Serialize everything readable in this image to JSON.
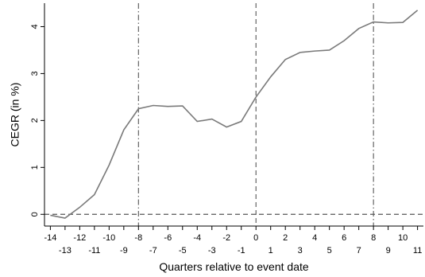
{
  "chart_data": {
    "type": "line",
    "title": "",
    "xlabel": "Quarters relative to event date",
    "ylabel": "CEGR (in %)",
    "xlim": [
      -14.4,
      11.4
    ],
    "ylim": [
      -0.25,
      4.5
    ],
    "x_ticks_upper": [
      -14,
      -12,
      -10,
      -8,
      -6,
      -4,
      -2,
      0,
      2,
      4,
      6,
      8,
      10
    ],
    "x_ticks_lower": [
      -13,
      -11,
      -9,
      -7,
      -5,
      -3,
      -1,
      1,
      3,
      5,
      7,
      9,
      11
    ],
    "y_ticks": [
      0,
      1,
      2,
      3,
      4
    ],
    "grid": false,
    "legend": "none",
    "reference_lines": {
      "horizontal_dashed_at": 0,
      "vertical_dashdot_at": [
        -8,
        8
      ],
      "vertical_dashed_at": [
        0
      ]
    },
    "series": [
      {
        "color": "#7a7a7a",
        "x": [
          -14,
          -13,
          -12,
          -11,
          -10,
          -9,
          -8,
          -7,
          -6,
          -5,
          -4,
          -3,
          -2,
          -1,
          0,
          1,
          2,
          3,
          4,
          5,
          6,
          7,
          8,
          9,
          10,
          11
        ],
        "y": [
          -0.02,
          -0.08,
          0.15,
          0.42,
          1.05,
          1.8,
          2.25,
          2.32,
          2.3,
          2.31,
          1.98,
          2.03,
          1.86,
          1.98,
          2.5,
          2.93,
          3.3,
          3.45,
          3.48,
          3.5,
          3.7,
          3.96,
          4.1,
          4.08,
          4.09,
          4.35
        ]
      }
    ]
  }
}
